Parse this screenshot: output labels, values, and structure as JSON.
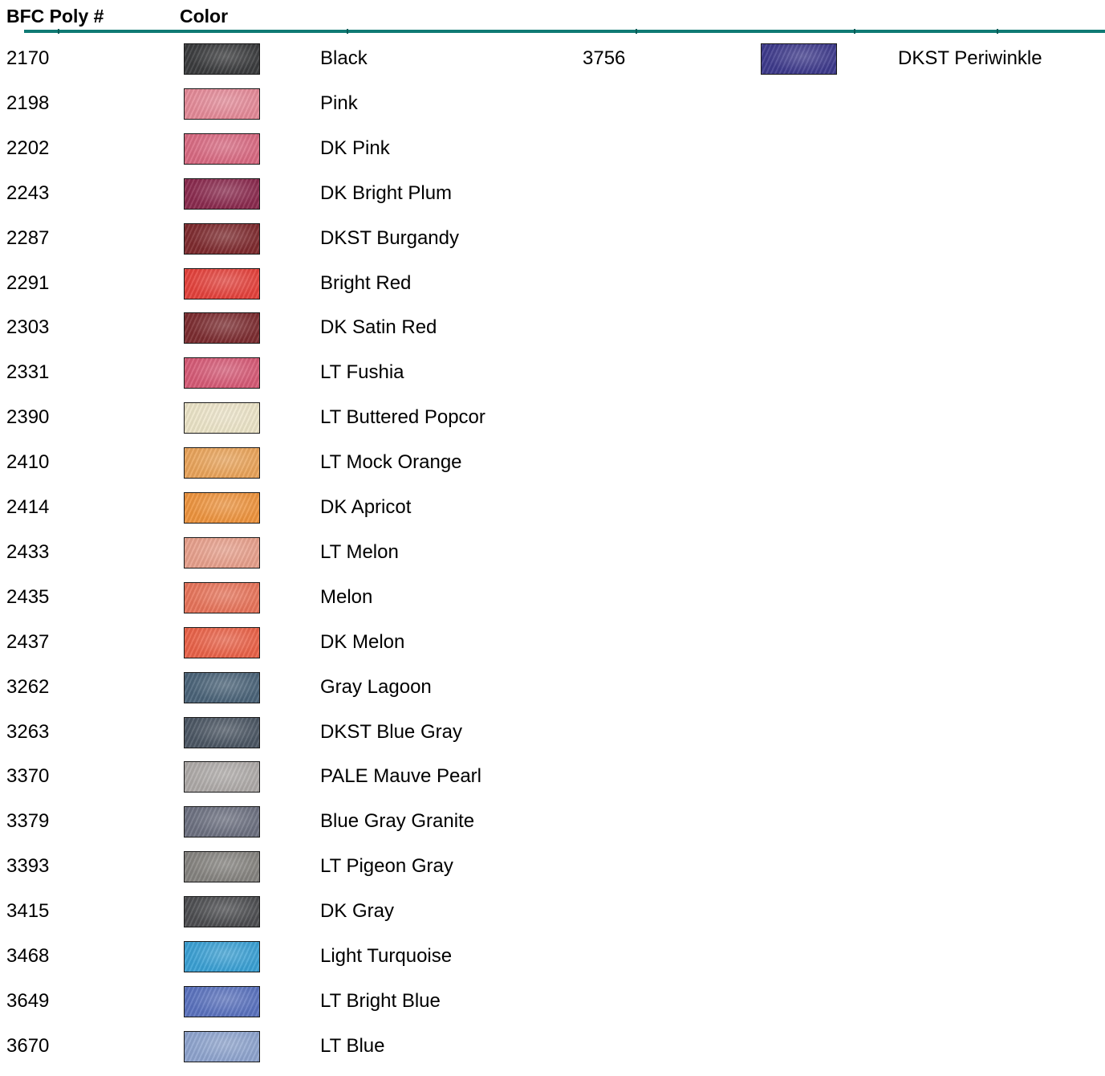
{
  "header": {
    "number_label": "BFC Poly #",
    "color_label": "Color",
    "rule_color": "#0f7a74"
  },
  "column1": [
    {
      "number": "2170",
      "name": "Black",
      "swatch": "#3a3b3d"
    },
    {
      "number": "2198",
      "name": "Pink",
      "swatch": "#e48a98"
    },
    {
      "number": "2202",
      "name": "DK Pink",
      "swatch": "#d96a82"
    },
    {
      "number": "2243",
      "name": "DK Bright Plum",
      "swatch": "#8a2a4e"
    },
    {
      "number": "2287",
      "name": "DKST Burgandy",
      "swatch": "#7e2a2e"
    },
    {
      "number": "2291",
      "name": "Bright Red",
      "swatch": "#e4423c"
    },
    {
      "number": "2303",
      "name": "DK Satin Red",
      "swatch": "#7c2c30"
    },
    {
      "number": "2331",
      "name": "LT Fushia",
      "swatch": "#d65a76"
    },
    {
      "number": "2390",
      "name": "LT Buttered Popcor",
      "swatch": "#ece4c8"
    },
    {
      "number": "2410",
      "name": "LT Mock Orange",
      "swatch": "#eaa45a"
    },
    {
      "number": "2414",
      "name": "DK Apricot",
      "swatch": "#ee943e"
    },
    {
      "number": "2433",
      "name": "LT Melon",
      "swatch": "#e8a08c"
    },
    {
      "number": "2435",
      "name": "Melon",
      "swatch": "#e8745a"
    },
    {
      "number": "2437",
      "name": "DK Melon",
      "swatch": "#ea6248"
    },
    {
      "number": "3262",
      "name": "Gray Lagoon",
      "swatch": "#4a6378"
    },
    {
      "number": "3263",
      "name": "DKST Blue Gray",
      "swatch": "#4b5663"
    },
    {
      "number": "3370",
      "name": "PALE Mauve Pearl",
      "swatch": "#aeaaa8"
    },
    {
      "number": "3379",
      "name": "Blue Gray Granite",
      "swatch": "#6c7080"
    },
    {
      "number": "3393",
      "name": "LT Pigeon Gray",
      "swatch": "#85837f"
    },
    {
      "number": "3415",
      "name": "DK Gray",
      "swatch": "#4c4d50"
    },
    {
      "number": "3468",
      "name": "Light Turquoise",
      "swatch": "#3aa0d4"
    },
    {
      "number": "3649",
      "name": "LT Bright Blue",
      "swatch": "#5a72be"
    },
    {
      "number": "3670",
      "name": "LT  Blue",
      "swatch": "#8ea4ce"
    }
  ],
  "column2": [
    {
      "number": "3756",
      "name": "DKST Periwinkle",
      "swatch": "#3e3a8c"
    }
  ]
}
